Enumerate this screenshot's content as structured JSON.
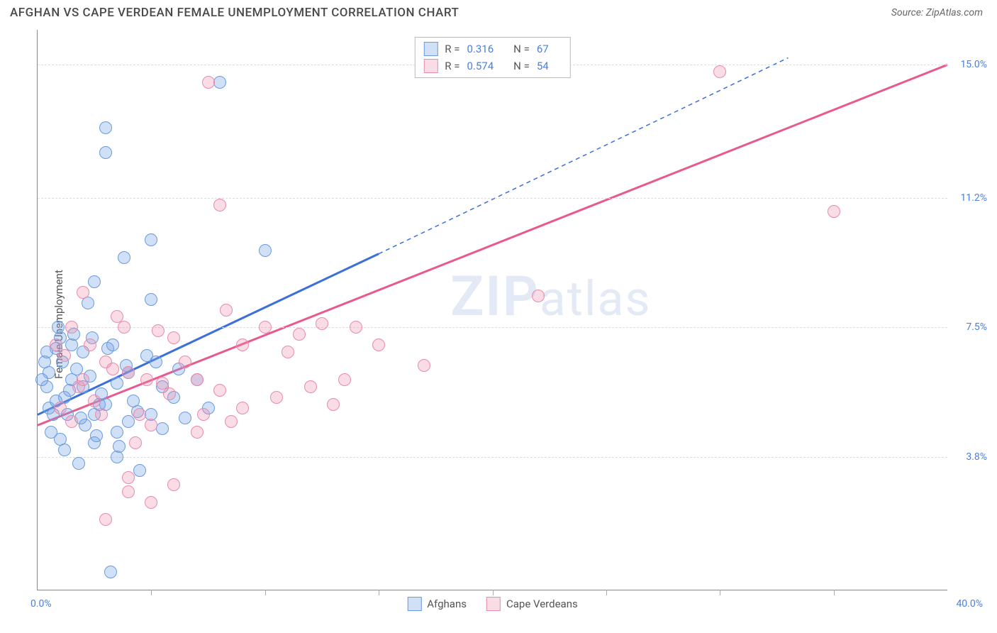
{
  "title": "AFGHAN VS CAPE VERDEAN FEMALE UNEMPLOYMENT CORRELATION CHART",
  "source": "Source: ZipAtlas.com",
  "y_axis_label": "Female Unemployment",
  "watermark": "ZIPatlas",
  "chart": {
    "type": "scatter",
    "xlim": [
      0,
      40
    ],
    "ylim": [
      0,
      16
    ],
    "x_tick_step": 5,
    "x_label_min": "0.0%",
    "x_label_max": "40.0%",
    "y_ticks": [
      {
        "v": 3.8,
        "label": "3.8%"
      },
      {
        "v": 7.5,
        "label": "7.5%"
      },
      {
        "v": 11.2,
        "label": "11.2%"
      },
      {
        "v": 15.0,
        "label": "15.0%"
      }
    ],
    "background_color": "#ffffff",
    "grid_color": "#dddddd",
    "series": [
      {
        "name": "Afghans",
        "color_fill": "rgba(120,165,230,0.35)",
        "color_stroke": "#6a9ae0",
        "line_color": "#3b6fd9",
        "r": 0.316,
        "n": 67,
        "trend": {
          "x1": 0,
          "y1": 5.0,
          "x2": 15,
          "y2": 9.6,
          "dash_x2": 33,
          "dash_y2": 15.2
        },
        "points": [
          [
            0.3,
            6.5
          ],
          [
            0.5,
            5.2
          ],
          [
            0.8,
            6.9
          ],
          [
            1.0,
            4.3
          ],
          [
            1.0,
            7.2
          ],
          [
            1.2,
            5.5
          ],
          [
            1.2,
            4.0
          ],
          [
            1.5,
            6.0
          ],
          [
            1.5,
            7.0
          ],
          [
            1.8,
            3.6
          ],
          [
            2.0,
            5.8
          ],
          [
            2.0,
            6.8
          ],
          [
            2.2,
            8.2
          ],
          [
            2.5,
            5.0
          ],
          [
            2.5,
            4.2
          ],
          [
            2.5,
            8.8
          ],
          [
            3.0,
            13.2
          ],
          [
            3.0,
            5.3
          ],
          [
            3.0,
            12.5
          ],
          [
            3.2,
            0.5
          ],
          [
            3.5,
            4.5
          ],
          [
            3.5,
            3.8
          ],
          [
            3.5,
            5.9
          ],
          [
            3.8,
            9.5
          ],
          [
            4.0,
            4.8
          ],
          [
            4.0,
            6.2
          ],
          [
            4.5,
            3.4
          ],
          [
            5.0,
            8.3
          ],
          [
            5.0,
            10.0
          ],
          [
            5.0,
            5.0
          ],
          [
            5.2,
            6.5
          ],
          [
            5.5,
            4.6
          ],
          [
            6.0,
            5.5
          ],
          [
            6.5,
            4.9
          ],
          [
            7.0,
            6.0
          ],
          [
            7.5,
            5.2
          ],
          [
            8.0,
            14.5
          ],
          [
            10.0,
            9.7
          ],
          [
            0.4,
            5.8
          ],
          [
            0.6,
            4.5
          ],
          [
            0.9,
            7.5
          ],
          [
            1.3,
            5.0
          ],
          [
            1.7,
            6.3
          ],
          [
            2.1,
            4.7
          ],
          [
            2.4,
            7.2
          ],
          [
            2.8,
            5.6
          ],
          [
            3.1,
            6.9
          ],
          [
            3.6,
            4.1
          ],
          [
            4.2,
            5.4
          ],
          [
            4.8,
            6.7
          ],
          [
            0.5,
            6.2
          ],
          [
            0.7,
            5.0
          ],
          [
            1.1,
            6.5
          ],
          [
            1.4,
            5.7
          ],
          [
            1.9,
            4.9
          ],
          [
            2.3,
            6.1
          ],
          [
            2.7,
            5.3
          ],
          [
            3.3,
            7.0
          ],
          [
            3.9,
            6.4
          ],
          [
            4.4,
            5.1
          ],
          [
            5.5,
            5.8
          ],
          [
            6.2,
            6.3
          ],
          [
            0.2,
            6.0
          ],
          [
            0.4,
            6.8
          ],
          [
            0.8,
            5.4
          ],
          [
            1.6,
            7.3
          ],
          [
            2.6,
            4.4
          ]
        ]
      },
      {
        "name": "Cape Verdeans",
        "color_fill": "rgba(240,140,170,0.30)",
        "color_stroke": "#e88aae",
        "line_color": "#e85a8f",
        "r": 0.574,
        "n": 54,
        "trend": {
          "x1": 0,
          "y1": 4.7,
          "x2": 40,
          "y2": 15.0
        },
        "points": [
          [
            0.8,
            7.0
          ],
          [
            1.0,
            5.2
          ],
          [
            1.5,
            7.5
          ],
          [
            1.5,
            4.8
          ],
          [
            2.0,
            6.0
          ],
          [
            2.0,
            8.5
          ],
          [
            2.5,
            5.4
          ],
          [
            3.0,
            6.5
          ],
          [
            3.0,
            2.0
          ],
          [
            3.5,
            7.8
          ],
          [
            4.0,
            2.8
          ],
          [
            4.0,
            3.2
          ],
          [
            4.0,
            6.2
          ],
          [
            4.5,
            5.0
          ],
          [
            5.0,
            2.5
          ],
          [
            5.0,
            4.7
          ],
          [
            5.5,
            5.9
          ],
          [
            6.0,
            3.0
          ],
          [
            6.0,
            7.2
          ],
          [
            7.0,
            4.5
          ],
          [
            7.0,
            6.0
          ],
          [
            7.5,
            14.5
          ],
          [
            8.0,
            5.7
          ],
          [
            8.0,
            11.0
          ],
          [
            8.5,
            4.8
          ],
          [
            9.0,
            7.0
          ],
          [
            9.0,
            5.2
          ],
          [
            10.0,
            7.5
          ],
          [
            10.5,
            5.5
          ],
          [
            11.0,
            6.8
          ],
          [
            11.5,
            7.3
          ],
          [
            12.0,
            5.8
          ],
          [
            12.5,
            7.6
          ],
          [
            13.0,
            5.3
          ],
          [
            13.5,
            6.0
          ],
          [
            14.0,
            7.5
          ],
          [
            15.0,
            7.0
          ],
          [
            17.0,
            6.4
          ],
          [
            22.0,
            8.4
          ],
          [
            30.0,
            14.8
          ],
          [
            35.0,
            10.8
          ],
          [
            1.2,
            6.7
          ],
          [
            1.8,
            5.8
          ],
          [
            2.3,
            7.0
          ],
          [
            2.8,
            5.0
          ],
          [
            3.3,
            6.3
          ],
          [
            3.8,
            7.5
          ],
          [
            4.3,
            4.2
          ],
          [
            4.8,
            6.0
          ],
          [
            5.3,
            7.4
          ],
          [
            5.8,
            5.6
          ],
          [
            6.5,
            6.5
          ],
          [
            7.3,
            5.0
          ],
          [
            8.3,
            8.0
          ]
        ]
      }
    ]
  },
  "legend": {
    "series1": "Afghans",
    "series2": "Cape Verdeans"
  },
  "stats_labels": {
    "r": "R =",
    "n": "N ="
  }
}
